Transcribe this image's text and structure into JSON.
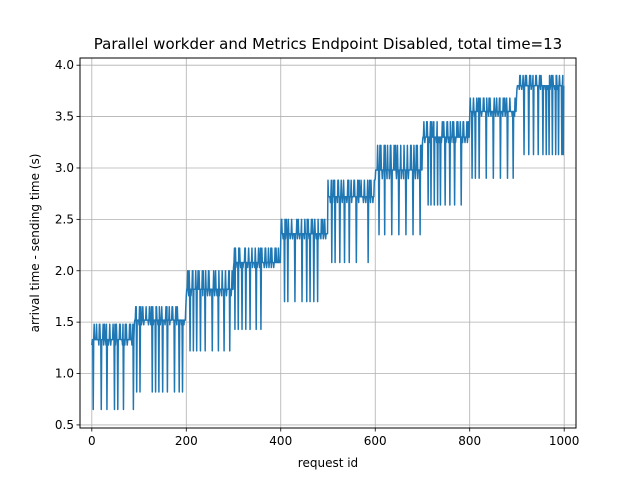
{
  "chart_data": {
    "type": "line",
    "title": "Parallel workder and Metrics Endpoint Disabled, total time=13",
    "xlabel": "request id",
    "ylabel": "arrival time - sending time (s)",
    "xlim": [
      -25,
      1025
    ],
    "ylim": [
      0.47,
      4.07
    ],
    "xticks": [
      0,
      200,
      400,
      600,
      800,
      1000
    ],
    "xtick_labels": [
      "0",
      "200",
      "400",
      "600",
      "800",
      "1000"
    ],
    "yticks": [
      0.5,
      1.0,
      1.5,
      2.0,
      2.5,
      3.0,
      3.5,
      4.0
    ],
    "ytick_labels": [
      "0.5",
      "1.0",
      "1.5",
      "2.0",
      "2.5",
      "3.0",
      "3.5",
      "4.0"
    ],
    "grid": true,
    "legend": "none",
    "series_color": "#1f77b4",
    "segments": [
      {
        "x_start": 0,
        "x_end": 90,
        "base": 1.33,
        "high": 1.48,
        "low": 0.65,
        "dip_ids": [
          3,
          20,
          32,
          48,
          55,
          67,
          88
        ]
      },
      {
        "x_start": 90,
        "x_end": 200,
        "base": 1.52,
        "high": 1.65,
        "low": 0.82,
        "dip_ids": [
          95,
          102,
          128,
          135,
          142,
          150,
          160,
          175,
          185,
          192
        ]
      },
      {
        "x_start": 200,
        "x_end": 300,
        "base": 1.82,
        "high": 2.0,
        "low": 1.22,
        "dip_ids": [
          208,
          215,
          222,
          230,
          240,
          255,
          268,
          280,
          292
        ]
      },
      {
        "x_start": 300,
        "x_end": 400,
        "base": 2.08,
        "high": 2.22,
        "low": 1.43,
        "dip_ids": [
          303,
          310,
          318,
          326,
          335,
          348,
          358
        ]
      },
      {
        "x_start": 400,
        "x_end": 500,
        "base": 2.36,
        "high": 2.5,
        "low": 1.7,
        "dip_ids": [
          408,
          415,
          430,
          445,
          455,
          462,
          470,
          478
        ]
      },
      {
        "x_start": 500,
        "x_end": 600,
        "base": 2.72,
        "high": 2.88,
        "low": 2.08,
        "dip_ids": [
          508,
          515,
          525,
          535,
          545,
          560,
          585
        ]
      },
      {
        "x_start": 600,
        "x_end": 700,
        "base": 2.98,
        "high": 3.22,
        "low": 2.35,
        "dip_ids": [
          608,
          620,
          635,
          650,
          665,
          680,
          695
        ]
      },
      {
        "x_start": 700,
        "x_end": 800,
        "base": 3.3,
        "high": 3.45,
        "low": 2.64,
        "dip_ids": [
          712,
          718,
          725,
          732,
          738,
          748,
          758,
          768,
          782
        ]
      },
      {
        "x_start": 800,
        "x_end": 900,
        "base": 3.55,
        "high": 3.68,
        "low": 2.9,
        "dip_ids": [
          805,
          812,
          820,
          835,
          850,
          865,
          880,
          892
        ]
      },
      {
        "x_start": 900,
        "x_end": 1000,
        "base": 3.8,
        "high": 3.9,
        "low": 3.13,
        "dip_ids": [
          915,
          925,
          935,
          945,
          955,
          962,
          968,
          975,
          982,
          988,
          995,
          998
        ]
      }
    ]
  }
}
